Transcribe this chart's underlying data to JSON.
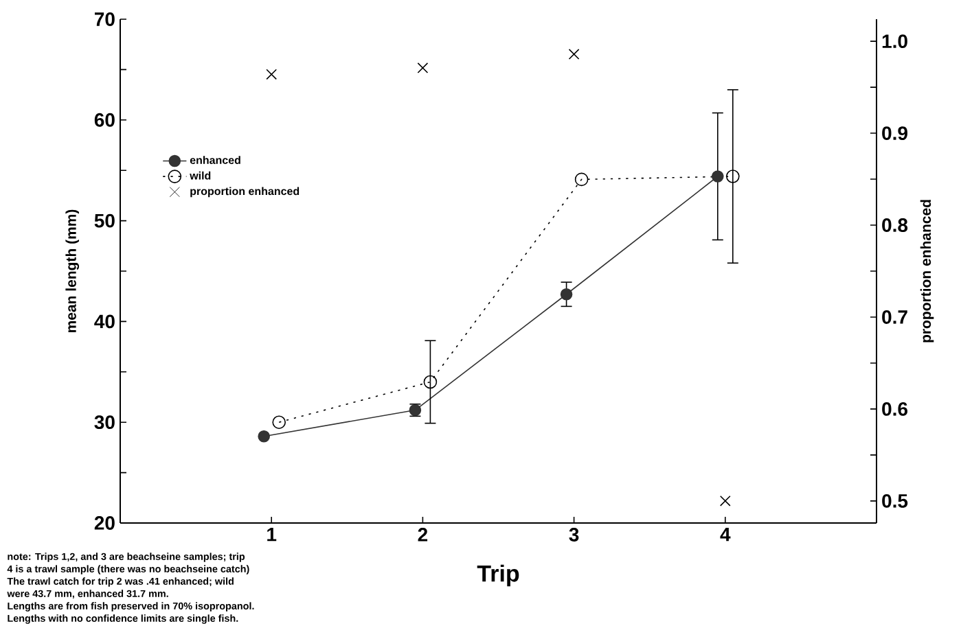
{
  "chart_data": {
    "type": "line",
    "xlabel": "Trip",
    "ylabel": "mean length (mm)",
    "y2label": "proportion enhanced",
    "xlim": [
      0,
      5
    ],
    "xticks": [
      1,
      2,
      3,
      4
    ],
    "ylim": [
      20,
      70
    ],
    "yticks": [
      20,
      {
        "value": 25,
        "label": null
      },
      30,
      {
        "value": 35,
        "label": null
      },
      40,
      {
        "value": 45,
        "label": null
      },
      50,
      {
        "value": 55,
        "label": null
      },
      60,
      {
        "value": 65,
        "label": null
      },
      70
    ],
    "y2lim": [
      0.476,
      1.024
    ],
    "y2ticks": [
      0.5,
      {
        "value": 0.55,
        "label": null
      },
      0.6,
      {
        "value": 0.65,
        "label": null
      },
      0.7,
      {
        "value": 0.75,
        "label": null
      },
      0.8,
      {
        "value": 0.85,
        "label": null
      },
      0.9,
      {
        "value": 0.95,
        "label": null
      },
      {
        "value": 1.0,
        "label": "1.0"
      }
    ],
    "legend": "top left",
    "series": [
      {
        "name": "enhanced",
        "color": "#333333",
        "marker": "circle",
        "line_style": "solid",
        "x": [
          0.95,
          1.95,
          2.95,
          3.95
        ],
        "values": [
          28.6,
          31.2,
          42.7,
          54.4
        ],
        "errors": [
          null,
          0.6,
          1.2,
          6.3
        ]
      },
      {
        "name": "wild",
        "color": "#000000",
        "marker": "open circle",
        "line_style": "dotted",
        "x": [
          1.05,
          2.05,
          3.05,
          4.05
        ],
        "values": [
          30.0,
          34.0,
          54.1,
          54.4
        ],
        "errors": [
          null,
          4.1,
          null,
          8.6
        ]
      },
      {
        "name": "proportion enhanced",
        "type": "scatter",
        "axis": "y2",
        "color": "#000000",
        "marker": "cross",
        "x": [
          1,
          2,
          3,
          4
        ],
        "values": [
          0.964,
          0.971,
          0.986,
          0.5
        ]
      }
    ],
    "annotations": [
      "note: Trips 1,2, and 3 are beachseine samples; trip",
      "4 is a trawl sample (there was no beachseine catch)",
      "The trawl catch for trip 2 was .41 enhanced; wild",
      "were 43.7 mm, enhanced 31.7 mm.",
      "Lengths are from fish preserved in 70% isopropanol.",
      "Lengths with no confidence limits are single fish."
    ]
  }
}
